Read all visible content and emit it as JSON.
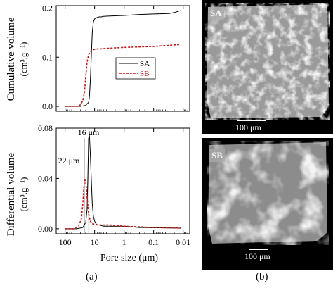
{
  "chart_data": [
    {
      "type": "line",
      "title": "",
      "xlabel": "Pore size (μm)",
      "ylabel_line1": "Cumulative volume",
      "ylabel_line2": "(cm³.g⁻¹)",
      "x_scale": "log",
      "x_reversed": true,
      "xlim": [
        200,
        0.006
      ],
      "ylim": [
        -0.01,
        0.205
      ],
      "y_ticks": [
        "0.0",
        "0.1",
        "0.2"
      ],
      "y_tick_values": [
        0.0,
        0.1,
        0.2
      ],
      "legend": {
        "placement": "center-right",
        "entries": [
          "SA",
          "SB"
        ]
      },
      "series": [
        {
          "name": "SA",
          "color": "#000000",
          "dash": "solid",
          "x": [
            100,
            30,
            20,
            16,
            15,
            14,
            13,
            12,
            11,
            10,
            9,
            8,
            7,
            6,
            5,
            3,
            1,
            0.3,
            0.1,
            0.03,
            0.02,
            0.012
          ],
          "y": [
            0.0,
            0.0,
            0.002,
            0.008,
            0.02,
            0.05,
            0.1,
            0.15,
            0.172,
            0.178,
            0.18,
            0.181,
            0.182,
            0.182,
            0.183,
            0.184,
            0.185,
            0.187,
            0.188,
            0.189,
            0.191,
            0.195
          ]
        },
        {
          "name": "SB",
          "color": "#cc1111",
          "dash": "dashed",
          "x": [
            100,
            40,
            30,
            25,
            22,
            20,
            18,
            16,
            14,
            12,
            10,
            8,
            6,
            4,
            2,
            1,
            0.3,
            0.1,
            0.03,
            0.012
          ],
          "y": [
            0.0,
            0.0,
            0.003,
            0.012,
            0.03,
            0.06,
            0.09,
            0.105,
            0.112,
            0.115,
            0.116,
            0.117,
            0.117,
            0.118,
            0.119,
            0.12,
            0.121,
            0.122,
            0.124,
            0.126
          ]
        }
      ]
    },
    {
      "type": "line",
      "title": "",
      "xlabel": "Pore size (μm)",
      "ylabel_line1": "Differential volume",
      "ylabel_line2": "(cm³.g⁻¹)",
      "x_scale": "log",
      "x_reversed": true,
      "xlim": [
        200,
        0.006
      ],
      "ylim": [
        -0.004,
        0.08
      ],
      "y_ticks": [
        "0.00",
        "0.04",
        "0.08"
      ],
      "y_tick_values": [
        0.0,
        0.04,
        0.08
      ],
      "x_ticks": [
        "100",
        "10",
        "1",
        "0.1",
        "0.01"
      ],
      "x_tick_values": [
        100,
        10,
        1,
        0.1,
        0.01
      ],
      "annotations": [
        {
          "text": "16 μm",
          "x": 16
        },
        {
          "text": "22 μm",
          "x": 22
        }
      ],
      "series": [
        {
          "name": "SA",
          "color": "#000000",
          "dash": "solid",
          "x": [
            100,
            40,
            25,
            20,
            18,
            17,
            16,
            15,
            14,
            13,
            12,
            11,
            10,
            9,
            8,
            7,
            5,
            3,
            1,
            0.3,
            0.1,
            0.03,
            0.012
          ],
          "y": [
            0.0,
            0.0,
            0.001,
            0.005,
            0.015,
            0.04,
            0.072,
            0.074,
            0.06,
            0.04,
            0.02,
            0.01,
            0.006,
            0.004,
            0.003,
            0.003,
            0.002,
            0.002,
            0.002,
            0.001,
            0.0008,
            0.0006,
            0.0005
          ]
        },
        {
          "name": "SB",
          "color": "#cc1111",
          "dash": "dashed",
          "x": [
            100,
            50,
            35,
            28,
            25,
            22,
            20,
            18,
            16,
            14,
            12,
            10,
            8,
            5,
            3,
            1,
            0.3,
            0.1,
            0.03,
            0.012
          ],
          "y": [
            0.0,
            0.0,
            0.002,
            0.008,
            0.02,
            0.04,
            0.038,
            0.025,
            0.012,
            0.006,
            0.004,
            0.0035,
            0.003,
            0.003,
            0.003,
            0.002,
            0.0015,
            0.001,
            0.0008,
            0.0006
          ]
        }
      ]
    }
  ],
  "panels": {
    "caption_a": "(a)",
    "caption_b": "(b)",
    "image_top_tag": "SA",
    "image_bottom_tag": "SB",
    "image_top_scale": "100 μm",
    "image_bottom_scale": "100 μm"
  }
}
